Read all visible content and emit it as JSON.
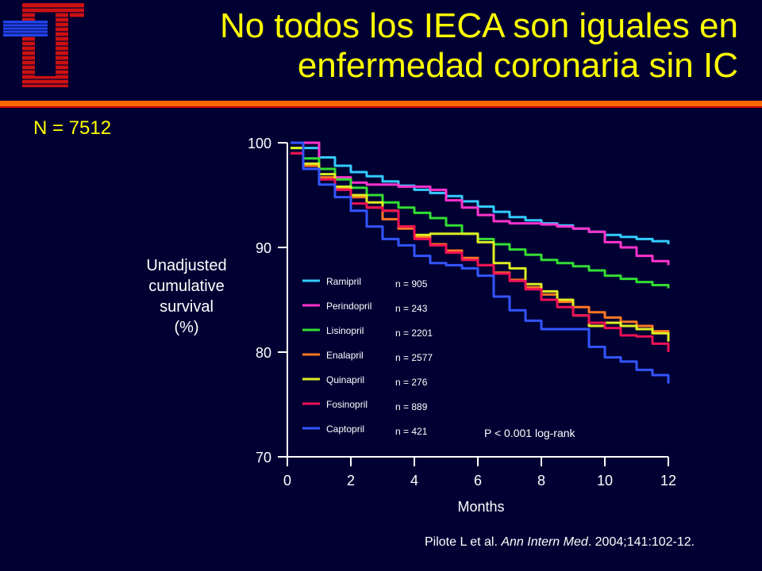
{
  "slide": {
    "title_line1": "No todos los IECA son iguales en",
    "title_line2": "enfermedad coronaria sin IC",
    "n_total": "N = 7512",
    "citation_author": "Pilote L et al. ",
    "citation_journal": "Ann Intern Med",
    "citation_rest": ". 2004;141:102-12.",
    "logo_icon": "hospital-logo-icon",
    "colors": {
      "background": "#000033",
      "title": "#ffff00",
      "rule": "#ff6600",
      "text": "#ffffff"
    }
  },
  "chart_data": {
    "type": "line",
    "xlabel": "Months",
    "ylabel": [
      "Unadjusted",
      "cumulative",
      "survival",
      "(%)"
    ],
    "xlim": [
      0,
      12
    ],
    "ylim": [
      70,
      100
    ],
    "xticks": [
      0,
      2,
      4,
      6,
      8,
      10,
      12
    ],
    "yticks": [
      70,
      80,
      90,
      100
    ],
    "grid": false,
    "legend_position": "bottom-left",
    "annotation": "P < 0.001 log-rank",
    "series": [
      {
        "name": "Ramipril",
        "n_label": "n = 905",
        "color": "#33ccff",
        "x": [
          0.1,
          0.5,
          1,
          1.5,
          2,
          2.5,
          3,
          3.5,
          4,
          4.5,
          5,
          5.5,
          6,
          6.5,
          7,
          7.5,
          8,
          8.5,
          9,
          9.5,
          10,
          10.5,
          11,
          11.5,
          12
        ],
        "y": [
          100,
          99.5,
          98.6,
          97.8,
          97.2,
          96.8,
          96.3,
          95.9,
          95.5,
          95.2,
          94.9,
          94.4,
          93.9,
          93.4,
          92.9,
          92.6,
          92.3,
          92.1,
          91.8,
          91.5,
          91.2,
          91.0,
          90.8,
          90.6,
          90.3
        ]
      },
      {
        "name": "Perindopril",
        "n_label": "n = 243",
        "color": "#ff33cc",
        "x": [
          0.1,
          0.5,
          1,
          1.5,
          2,
          2.5,
          3,
          3.5,
          4,
          4.5,
          5,
          5.5,
          6,
          6.5,
          7,
          7.5,
          8,
          8.5,
          9,
          9.5,
          10,
          10.5,
          11,
          11.5,
          12
        ],
        "y": [
          100,
          100,
          97.5,
          96.7,
          96.2,
          96.0,
          96.0,
          95.8,
          95.8,
          95.5,
          94.5,
          93.8,
          93.1,
          92.5,
          92.3,
          92.3,
          92.2,
          92.0,
          91.8,
          91.5,
          90.5,
          90.0,
          89.2,
          88.7,
          88.3
        ]
      },
      {
        "name": "Lisinopril",
        "n_label": "n = 2201",
        "color": "#33dd33",
        "x": [
          0.1,
          0.5,
          1,
          1.5,
          2,
          2.5,
          3,
          3.5,
          4,
          4.5,
          5,
          5.5,
          6,
          6.5,
          7,
          7.5,
          8,
          8.5,
          9,
          9.5,
          10,
          10.5,
          11,
          11.5,
          12
        ],
        "y": [
          99.5,
          98.5,
          97.5,
          96.5,
          95.7,
          95.0,
          94.3,
          93.8,
          93.3,
          92.8,
          92.1,
          91.3,
          90.8,
          90.3,
          89.8,
          89.3,
          88.8,
          88.5,
          88.2,
          87.8,
          87.3,
          87.0,
          86.7,
          86.4,
          86.1
        ]
      },
      {
        "name": "Enalapril",
        "n_label": "n = 2577",
        "color": "#ff7722",
        "x": [
          0.1,
          0.5,
          1,
          1.5,
          2,
          2.5,
          3,
          3.5,
          4,
          4.5,
          5,
          5.5,
          6,
          6.5,
          7,
          7.5,
          8,
          8.5,
          9,
          9.5,
          10,
          10.5,
          11,
          11.5,
          12
        ],
        "y": [
          99.0,
          97.8,
          96.7,
          95.7,
          94.8,
          93.8,
          92.7,
          91.8,
          91.0,
          90.3,
          89.7,
          89.0,
          88.3,
          87.6,
          86.9,
          86.2,
          85.5,
          84.8,
          84.3,
          83.8,
          83.3,
          82.9,
          82.5,
          82.0,
          81.5
        ]
      },
      {
        "name": "Quinapril",
        "n_label": "n = 276",
        "color": "#ddee22",
        "x": [
          0.1,
          0.5,
          1,
          1.5,
          2,
          2.5,
          3,
          3.5,
          4,
          4.5,
          5,
          5.5,
          6,
          6.5,
          7,
          7.5,
          8,
          8.5,
          9,
          9.5,
          10,
          10.5,
          11,
          11.5,
          12
        ],
        "y": [
          99.5,
          98.0,
          97.0,
          95.8,
          95.0,
          94.3,
          93.5,
          92.0,
          91.2,
          91.3,
          91.3,
          91.3,
          90.5,
          88.5,
          88.0,
          86.5,
          85.8,
          85.0,
          83.5,
          82.5,
          82.8,
          82.5,
          82.2,
          81.8,
          81.0
        ]
      },
      {
        "name": "Fosinopril",
        "n_label": "n = 889",
        "color": "#ee1155",
        "x": [
          0.1,
          0.5,
          1,
          1.5,
          2,
          2.5,
          3,
          3.5,
          4,
          4.5,
          5,
          5.5,
          6,
          6.5,
          7,
          7.5,
          8,
          8.5,
          9,
          9.5,
          10,
          10.5,
          11,
          11.5,
          12
        ],
        "y": [
          99.0,
          97.5,
          96.5,
          95.5,
          94.2,
          93.8,
          93.5,
          92.0,
          90.8,
          90.2,
          89.5,
          88.8,
          88.3,
          87.5,
          86.8,
          86.0,
          85.0,
          84.3,
          83.5,
          82.8,
          82.3,
          81.6,
          81.5,
          80.8,
          80.0
        ]
      },
      {
        "name": "Captopril",
        "n_label": "n = 421",
        "color": "#3355ff",
        "x": [
          0.1,
          0.5,
          1,
          1.5,
          2,
          2.5,
          3,
          3.5,
          4,
          4.5,
          5,
          5.5,
          6,
          6.5,
          7,
          7.5,
          8,
          8.5,
          9,
          9.5,
          10,
          10.5,
          11,
          11.5,
          12
        ],
        "y": [
          100,
          97.5,
          96.0,
          94.8,
          93.5,
          92.0,
          90.8,
          90.2,
          89.2,
          88.5,
          88.3,
          88.0,
          87.3,
          85.3,
          84.0,
          83.0,
          82.2,
          82.2,
          82.2,
          80.5,
          79.5,
          79.1,
          78.3,
          77.8,
          77.0
        ]
      }
    ]
  }
}
